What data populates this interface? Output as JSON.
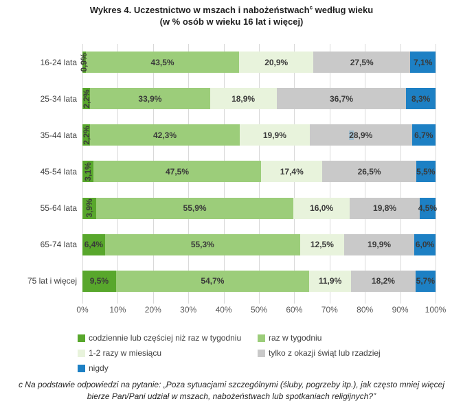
{
  "title": {
    "line1_main": "Wykres 4. Uczestnictwo w mszach i nabożeństwach",
    "line1_sup": "c",
    "line1_rest": " według wieku",
    "line2": "(w % osób w wieku 16 lat i więcej)"
  },
  "chart_data": {
    "type": "bar",
    "orientation": "horizontal",
    "stacked": true,
    "grid": true,
    "legend_position": "bottom",
    "xlim": [
      0,
      100
    ],
    "x_ticks": [
      "0%",
      "10%",
      "20%",
      "30%",
      "40%",
      "50%",
      "60%",
      "70%",
      "80%",
      "90%",
      "100%"
    ],
    "categories": [
      "16-24 lata",
      "25-34 lata",
      "35-44 lata",
      "45-54 lata",
      "55-64 lata",
      "65-74 lata",
      "75 lat i więcej"
    ],
    "series": [
      {
        "name": "codziennie lub częściej niż raz w tygodniu",
        "color": "#58a72c",
        "values": [
          0.9,
          2.2,
          2.2,
          3.1,
          3.9,
          6.4,
          9.5
        ],
        "labels": [
          "0,9%",
          "2,2%",
          "2,2%",
          "3,1%",
          "3,9%",
          "6,4%",
          "9,5%"
        ]
      },
      {
        "name": "raz w tygodniu",
        "color": "#9ccd7a",
        "values": [
          43.5,
          33.9,
          42.3,
          47.5,
          55.9,
          55.3,
          54.7
        ],
        "labels": [
          "43,5%",
          "33,9%",
          "42,3%",
          "47,5%",
          "55,9%",
          "55,3%",
          "54,7%"
        ]
      },
      {
        "name": "1-2 razy w miesiącu",
        "color": "#e8f3dc",
        "values": [
          20.9,
          18.9,
          19.9,
          17.4,
          16.0,
          12.5,
          11.9
        ],
        "labels": [
          "20,9%",
          "18,9%",
          "19,9%",
          "17,4%",
          "16,0%",
          "12,5%",
          "11,9%"
        ]
      },
      {
        "name": "tylko z okazji świąt lub rzadziej",
        "color": "#c9c9c9",
        "values": [
          27.5,
          36.7,
          28.9,
          26.5,
          19.8,
          19.9,
          18.2
        ],
        "labels": [
          "27,5%",
          "36,7%",
          "28,9%",
          "26,5%",
          "19,8%",
          "19,9%",
          "18,2%"
        ]
      },
      {
        "name": "nigdy",
        "color": "#1d80c4",
        "values": [
          7.1,
          8.3,
          6.7,
          5.5,
          4.5,
          6.0,
          5.7
        ],
        "labels": [
          "7,1%",
          "8,3%",
          "6,7%",
          "5,5%",
          "4,5%",
          "6,0%",
          "5,7%"
        ]
      }
    ]
  },
  "selection_artifact": {
    "category": "35-44 lata",
    "series_index": 3,
    "highlighted_char": "2",
    "highlight_color": "#a3bdcd"
  },
  "footnote": "c Na podstawie odpowiedzi na pytanie: „Poza sytuacjami szczególnymi (śluby, pogrzeby itp.), jak często mniej więcej bierze Pan/Pani udział w mszach, nabożeństwach lub spotkaniach religijnych?”"
}
